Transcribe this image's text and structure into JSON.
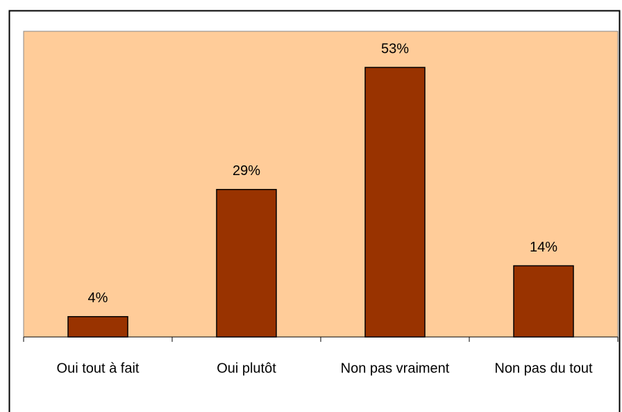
{
  "chart_data": {
    "type": "bar",
    "categories": [
      "Oui tout à fait",
      "Oui plutôt",
      "Non pas vraiment",
      "Non pas du tout"
    ],
    "values": [
      4,
      29,
      53,
      14
    ],
    "value_labels": [
      "4%",
      "29%",
      "53%",
      "14%"
    ],
    "color": "#993300",
    "background": "#ffcc99"
  }
}
